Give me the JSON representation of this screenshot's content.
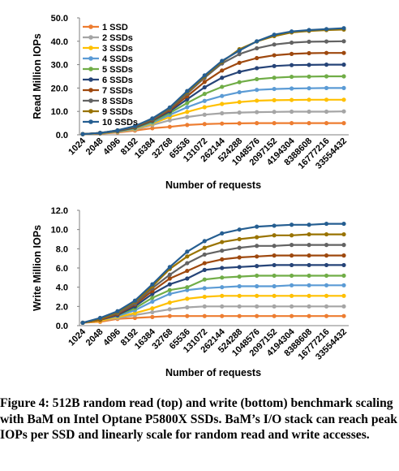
{
  "figure": {
    "caption": "Figure 4: 512B random read (top) and write (bottom) benchmark scaling with BaM on Intel Optane P5800X SSDs. BaM’s I/O stack can reach peak IOPs per SSD and linearly scale for random read and write accesses."
  },
  "chart_data": [
    {
      "type": "line",
      "title": "",
      "xlabel": "Number of requests",
      "ylabel": "Read Million IOPs",
      "ylim": [
        0,
        50
      ],
      "yticks": [
        "0.0",
        "10.0",
        "20.0",
        "30.0",
        "40.0",
        "50.0"
      ],
      "grid": false,
      "legend": "top-left",
      "categories": [
        "1024",
        "2048",
        "4096",
        "8192",
        "16384",
        "32768",
        "65536",
        "131072",
        "262144",
        "524288",
        "1048576",
        "2097152",
        "4194304",
        "8388608",
        "16777216",
        "33554432"
      ],
      "series": [
        {
          "name": "1 SSD",
          "color": "#ed7d31",
          "values": [
            0.3,
            0.5,
            1.0,
            1.8,
            2.8,
            3.4,
            4.2,
            4.6,
            4.8,
            4.9,
            5.0,
            5.0,
            5.0,
            5.0,
            5.0,
            5.0
          ]
        },
        {
          "name": "2 SSDs",
          "color": "#a5a5a5",
          "values": [
            0.3,
            0.6,
            1.2,
            2.2,
            4.2,
            6.2,
            7.6,
            8.6,
            9.2,
            9.5,
            9.7,
            9.8,
            9.9,
            9.9,
            9.9,
            10.0
          ]
        },
        {
          "name": "3 SSDs",
          "color": "#ffc000",
          "values": [
            0.3,
            0.6,
            1.3,
            2.5,
            4.8,
            7.6,
            9.8,
            11.8,
            13.2,
            14.0,
            14.6,
            14.8,
            14.9,
            15.0,
            15.0,
            15.0
          ]
        },
        {
          "name": "4 SSDs",
          "color": "#5b9bd5",
          "values": [
            0.3,
            0.7,
            1.4,
            2.7,
            5.2,
            8.5,
            11.8,
            14.5,
            16.6,
            18.2,
            19.2,
            19.6,
            19.8,
            19.9,
            20.0,
            20.0
          ]
        },
        {
          "name": "5 SSDs",
          "color": "#70ad47",
          "values": [
            0.3,
            0.7,
            1.5,
            2.9,
            5.6,
            9.3,
            13.6,
            17.5,
            20.5,
            22.5,
            23.8,
            24.4,
            24.8,
            24.9,
            25.0,
            25.0
          ]
        },
        {
          "name": "6 SSDs",
          "color": "#264478",
          "values": [
            0.3,
            0.7,
            1.6,
            3.1,
            6.0,
            10.0,
            15.2,
            20.3,
            24.4,
            26.9,
            28.5,
            29.4,
            29.8,
            29.9,
            30.0,
            30.0
          ]
        },
        {
          "name": "7 SSDs",
          "color": "#9e480e",
          "values": [
            0.3,
            0.8,
            1.7,
            3.3,
            6.3,
            10.6,
            16.5,
            22.6,
            27.5,
            30.8,
            32.8,
            34.0,
            34.6,
            34.9,
            35.0,
            35.0
          ]
        },
        {
          "name": "8 SSDs",
          "color": "#636363",
          "values": [
            0.3,
            0.8,
            1.8,
            3.5,
            6.6,
            11.1,
            17.6,
            24.4,
            30.5,
            34.5,
            37.0,
            38.6,
            39.4,
            39.8,
            39.9,
            40.0
          ]
        },
        {
          "name": "9 SSDs",
          "color": "#997300",
          "values": [
            0.3,
            0.8,
            1.9,
            3.6,
            6.9,
            11.5,
            18.3,
            25.0,
            31.2,
            36.6,
            39.9,
            42.2,
            43.8,
            44.4,
            44.8,
            45.0
          ]
        },
        {
          "name": "10 SSDs",
          "color": "#255e91",
          "values": [
            0.3,
            0.8,
            1.9,
            3.7,
            7.0,
            11.7,
            18.7,
            25.4,
            31.6,
            36.0,
            40.0,
            42.8,
            44.2,
            44.8,
            45.2,
            45.6
          ]
        }
      ]
    },
    {
      "type": "line",
      "title": "",
      "xlabel": "Number of requests",
      "ylabel": "Write Million IOPs",
      "ylim": [
        0,
        12
      ],
      "yticks": [
        "0.0",
        "2.0",
        "4.0",
        "6.0",
        "8.0",
        "10.0",
        "12.0"
      ],
      "grid": false,
      "legend": "none",
      "categories": [
        "1024",
        "2048",
        "4096",
        "8192",
        "16384",
        "32768",
        "65536",
        "131072",
        "262144",
        "524288",
        "1048576",
        "2097152",
        "4194304",
        "8388608",
        "16777216",
        "33554432"
      ],
      "series": [
        {
          "color": "#ed7d31",
          "values": [
            0.3,
            0.4,
            0.7,
            0.8,
            0.9,
            1.0,
            1.0,
            1.0,
            1.0,
            1.0,
            1.0,
            1.0,
            1.0,
            1.0,
            1.0,
            1.0
          ]
        },
        {
          "color": "#a5a5a5",
          "values": [
            0.3,
            0.5,
            0.8,
            1.1,
            1.4,
            1.7,
            1.9,
            2.0,
            2.0,
            2.0,
            2.0,
            2.0,
            2.0,
            2.0,
            2.0,
            2.0
          ]
        },
        {
          "color": "#ffc000",
          "values": [
            0.3,
            0.5,
            0.9,
            1.3,
            1.8,
            2.4,
            2.8,
            3.0,
            3.1,
            3.1,
            3.1,
            3.1,
            3.1,
            3.1,
            3.1,
            3.1
          ]
        },
        {
          "color": "#5b9bd5",
          "values": [
            0.3,
            0.6,
            1.0,
            1.6,
            2.5,
            3.3,
            3.7,
            3.9,
            4.0,
            4.1,
            4.1,
            4.1,
            4.2,
            4.2,
            4.2,
            4.2
          ]
        },
        {
          "color": "#70ad47",
          "values": [
            0.3,
            0.6,
            1.1,
            1.8,
            2.9,
            3.7,
            4.0,
            4.8,
            5.0,
            5.1,
            5.2,
            5.2,
            5.2,
            5.2,
            5.2,
            5.2
          ]
        },
        {
          "color": "#264478",
          "values": [
            0.3,
            0.6,
            1.1,
            2.0,
            3.3,
            4.3,
            4.9,
            5.8,
            6.0,
            6.1,
            6.2,
            6.3,
            6.3,
            6.3,
            6.3,
            6.3
          ]
        },
        {
          "color": "#9e480e",
          "values": [
            0.3,
            0.6,
            1.2,
            2.2,
            3.6,
            4.9,
            5.7,
            6.5,
            6.9,
            7.1,
            7.2,
            7.3,
            7.3,
            7.3,
            7.3,
            7.3
          ]
        },
        {
          "color": "#636363",
          "values": [
            0.3,
            0.7,
            1.3,
            2.3,
            3.9,
            5.3,
            6.5,
            7.4,
            7.8,
            8.1,
            8.3,
            8.3,
            8.4,
            8.4,
            8.4,
            8.4
          ]
        },
        {
          "color": "#997300",
          "values": [
            0.3,
            0.7,
            1.4,
            2.5,
            4.1,
            5.9,
            7.2,
            8.1,
            8.7,
            9.0,
            9.2,
            9.4,
            9.4,
            9.5,
            9.5,
            9.5
          ]
        },
        {
          "color": "#255e91",
          "values": [
            0.3,
            0.8,
            1.5,
            2.6,
            4.3,
            6.1,
            7.7,
            8.8,
            9.6,
            10.0,
            10.3,
            10.4,
            10.5,
            10.5,
            10.6,
            10.6
          ]
        }
      ]
    }
  ]
}
